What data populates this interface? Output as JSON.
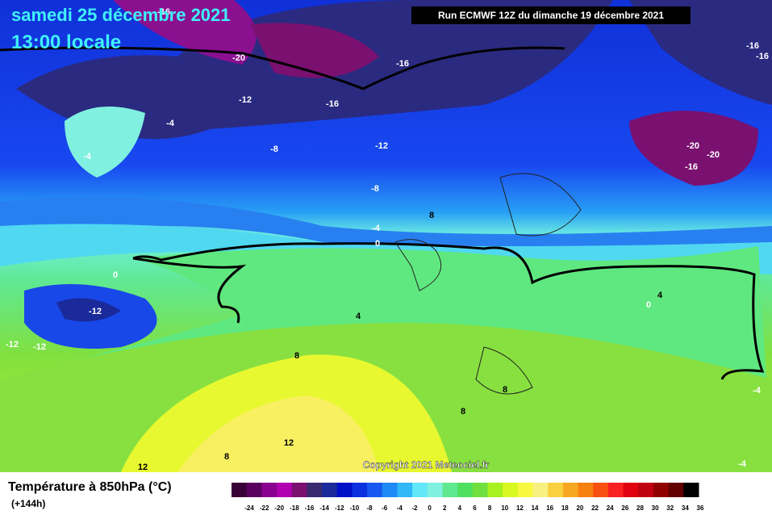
{
  "title": {
    "date": "samedi 25 décembre 2021",
    "time": "13:00 locale"
  },
  "run": "Run ECMWF 12Z du dimanche 19 décembre 2021",
  "copyright": "Copyright 2021 Meteociel.fr",
  "contour_labels": [
    -16,
    -20,
    -16,
    -12,
    -16,
    -4,
    -4,
    -8,
    -12,
    -8,
    -4,
    8,
    0,
    -16,
    -16,
    -20,
    -20,
    -16,
    0,
    -12,
    -12,
    -12,
    4,
    0,
    4,
    8,
    8,
    8,
    12,
    8,
    12,
    -4,
    -4
  ],
  "legend": {
    "title": "Température à 850hPa (°C)",
    "subtitle": "(+144h)",
    "ticks": [
      -24,
      -22,
      -20,
      -18,
      -16,
      -14,
      -12,
      -10,
      -8,
      -6,
      -4,
      -2,
      0,
      2,
      4,
      6,
      8,
      10,
      12,
      14,
      16,
      18,
      20,
      22,
      24,
      26,
      28,
      30,
      32,
      34,
      36
    ],
    "colors": [
      "#3a0038",
      "#5a0060",
      "#8a0090",
      "#b000b0",
      "#7a1070",
      "#3a2a70",
      "#1a2a9a",
      "#0010c8",
      "#0a30e0",
      "#1858f0",
      "#1e8af5",
      "#30b8f8",
      "#60e8f8",
      "#80f0e0",
      "#60e890",
      "#50e060",
      "#70e040",
      "#a8f020",
      "#d8f820",
      "#f8f840",
      "#f8f080",
      "#f8d040",
      "#f8a820",
      "#f88010",
      "#f85010",
      "#f82020",
      "#e00010",
      "#c00010",
      "#900000",
      "#600000",
      "#000000"
    ]
  }
}
